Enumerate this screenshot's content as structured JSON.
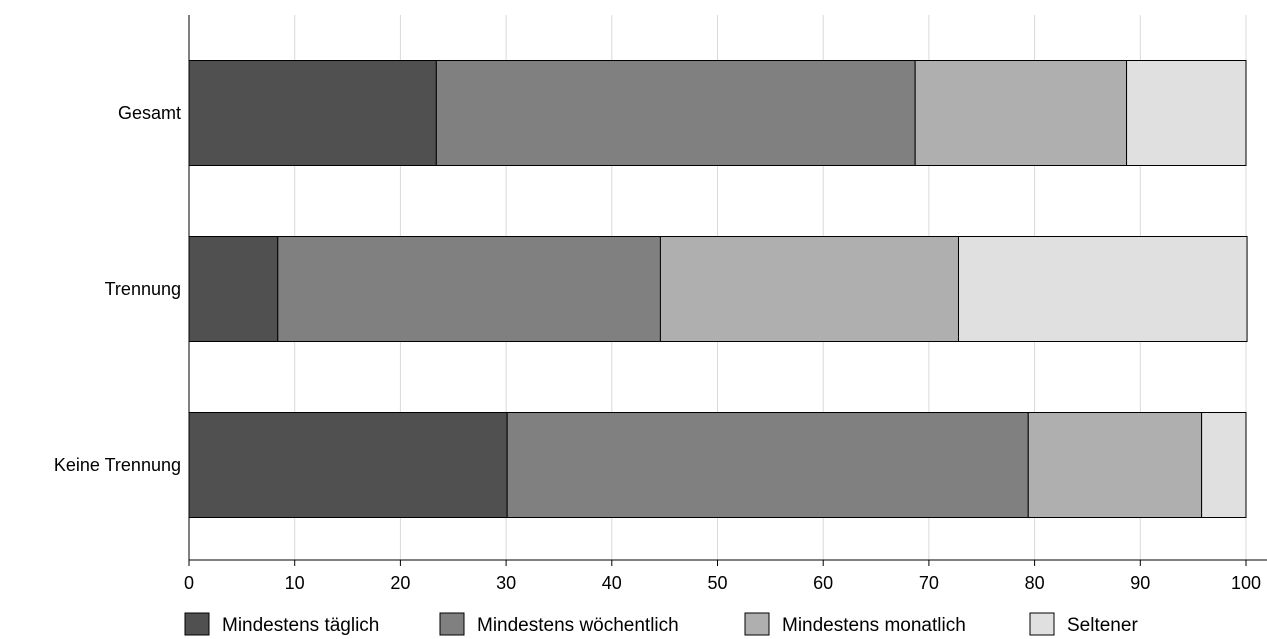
{
  "chart_data": {
    "type": "bar",
    "orientation": "horizontal",
    "stacked": true,
    "title": "",
    "xlabel": "",
    "ylabel": "",
    "categories": [
      "Gesamt",
      "Trennung",
      "Keine Trennung"
    ],
    "xlim": [
      0,
      100
    ],
    "xticks": [
      0,
      10,
      20,
      30,
      40,
      50,
      60,
      70,
      80,
      90,
      100
    ],
    "grid": "vertical",
    "legend": "bottom",
    "series": [
      {
        "name": "Mindestens täglich",
        "values": [
          23.4,
          8.4,
          30.1
        ],
        "color": "#505050"
      },
      {
        "name": "Mindestens wöchentlich",
        "values": [
          45.3,
          36.2,
          49.3
        ],
        "color": "#808080"
      },
      {
        "name": "Mindestens monatlich",
        "values": [
          20.0,
          28.2,
          16.4
        ],
        "color": "#afafaf"
      },
      {
        "name": "Seltener",
        "values": [
          11.3,
          27.3,
          4.2
        ],
        "color": "#e0e0e0"
      }
    ]
  }
}
